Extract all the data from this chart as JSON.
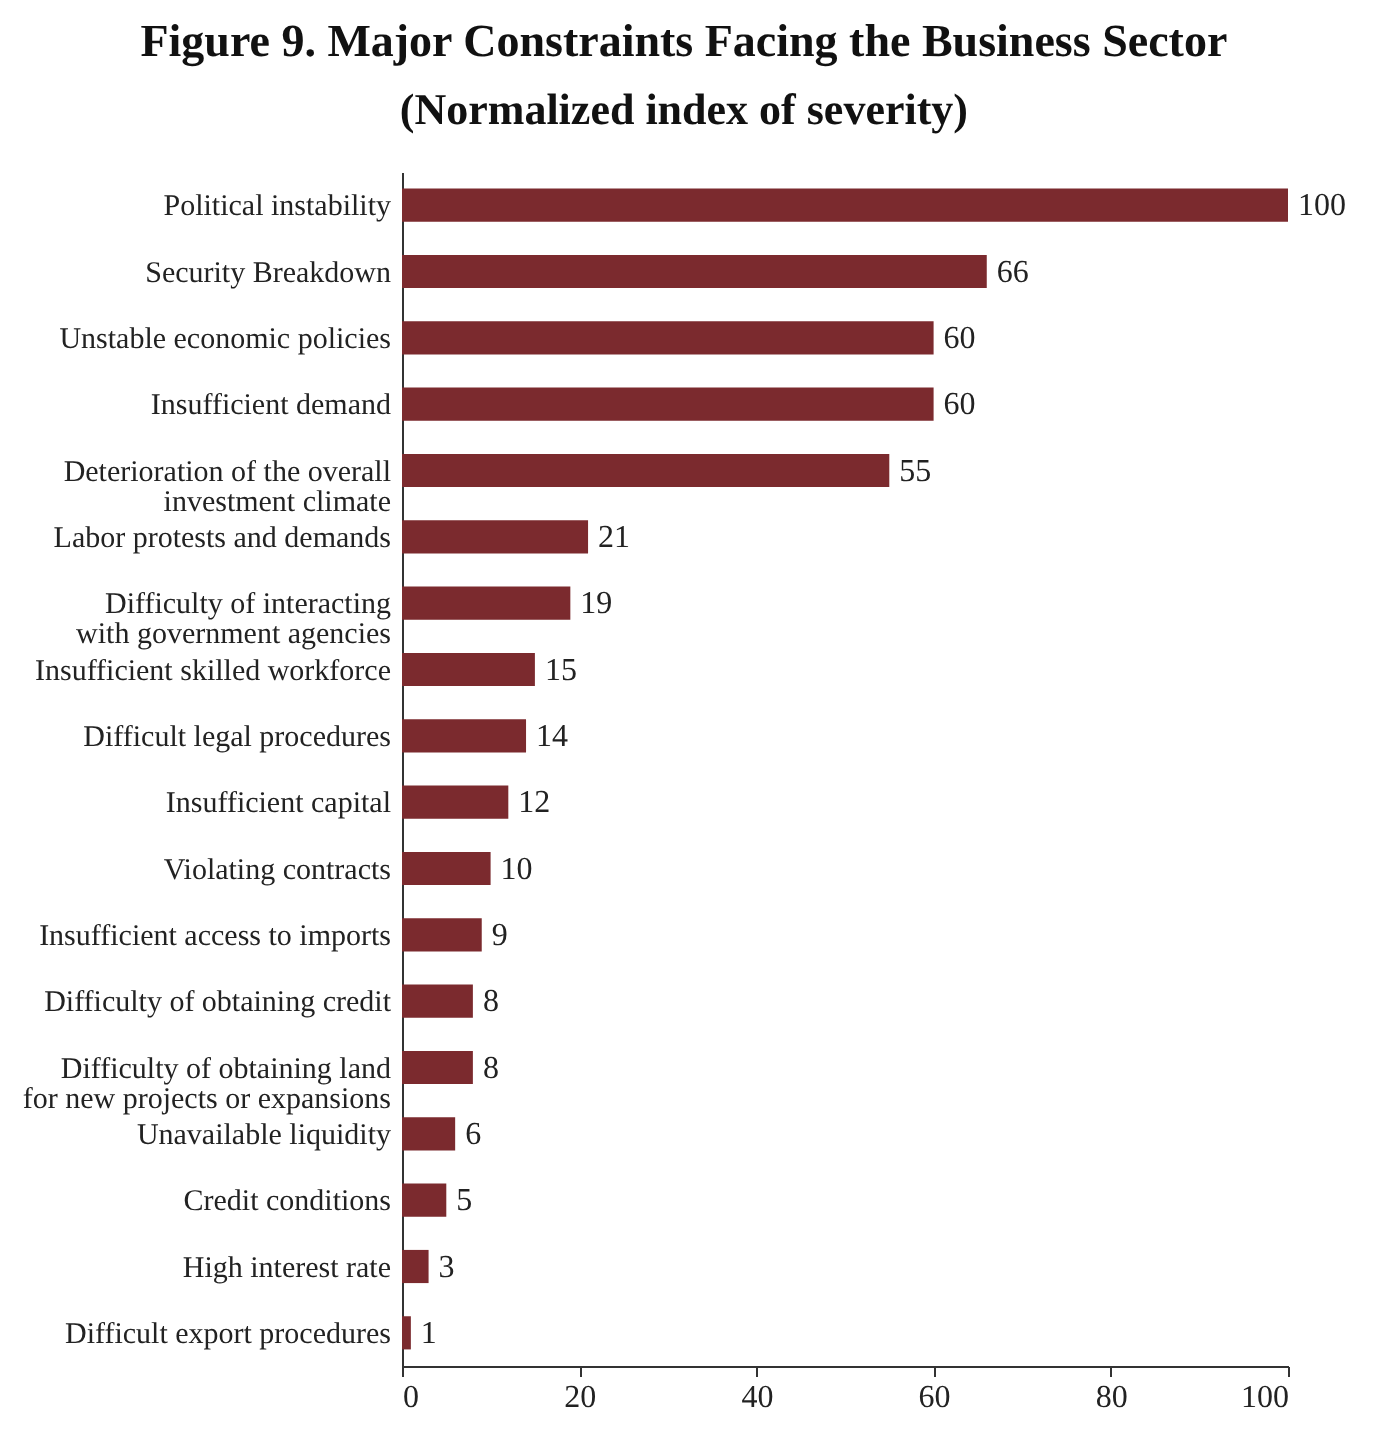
{
  "chart_data": {
    "type": "bar",
    "orientation": "horizontal",
    "title": "Figure 9. Major Constraints Facing the Business Sector",
    "subtitle": "(Normalized index of severity)",
    "categories": [
      "Political instability",
      "Security Breakdown",
      "Unstable economic policies",
      "Insufficient demand",
      "Deterioration of the overall investment climate",
      "Labor protests and demands",
      "Difficulty of interacting with government agencies",
      "Insufficient skilled workforce",
      "Difficult legal procedures",
      "Insufficient capital",
      "Violating contracts",
      "Insufficient access to imports",
      "Difficulty of obtaining credit",
      "Difficulty of obtaining land for new projects or expansions",
      "Unavailable liquidity",
      "Credit conditions",
      "High interest rate",
      "Difficult export procedures"
    ],
    "values": [
      100,
      66,
      60,
      60,
      55,
      21,
      19,
      15,
      14,
      12,
      10,
      9,
      8,
      8,
      6,
      5,
      3,
      1
    ],
    "color": "#7b2a2e",
    "xlim": [
      0,
      100
    ],
    "xticks": [
      0,
      20,
      40,
      60,
      80,
      100
    ],
    "grid": false,
    "data_labels": true
  }
}
